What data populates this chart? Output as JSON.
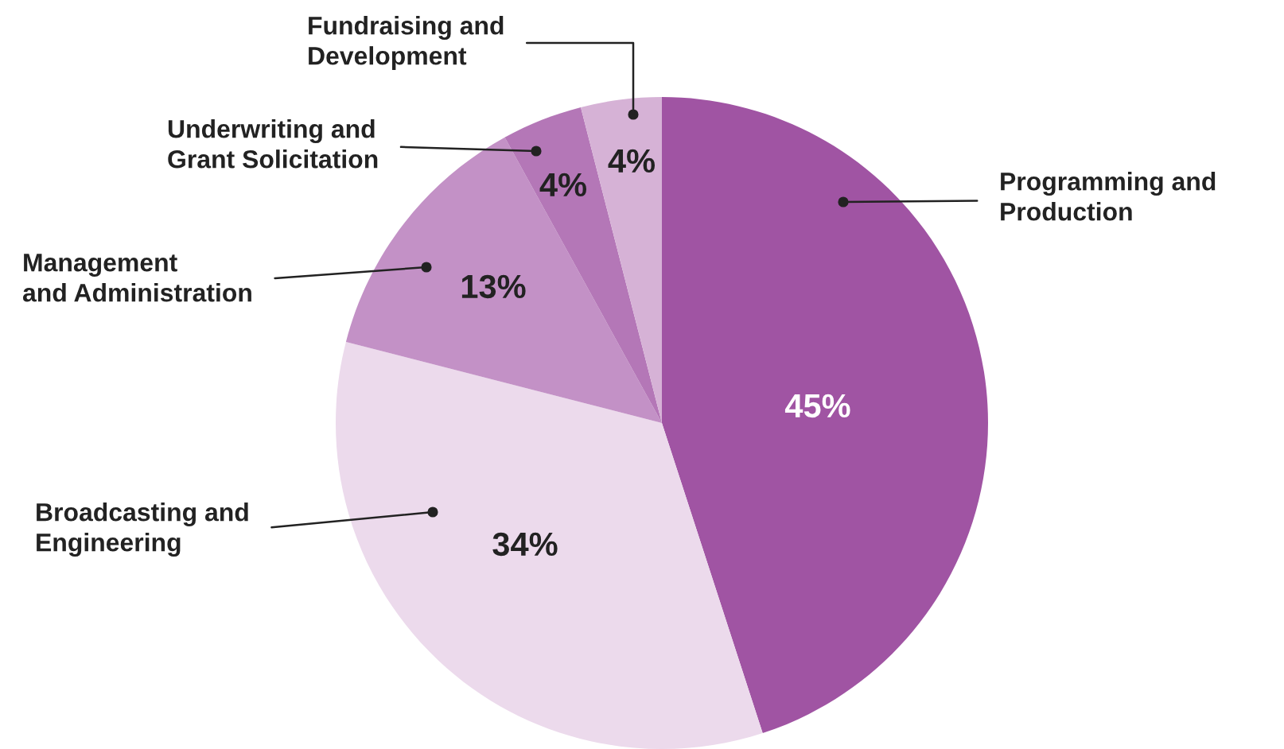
{
  "chart_data": {
    "type": "pie",
    "categories": [
      "Programming and\nProduction",
      "Broadcasting and\nEngineering",
      "Management\nand Administration",
      "Underwriting and\nGrant Solicitation",
      "Fundraising and\nDevelopment"
    ],
    "values": [
      45,
      34,
      13,
      4,
      4
    ],
    "value_labels": [
      "45%",
      "34%",
      "13%",
      "4%",
      "4%"
    ],
    "colors": [
      "#a054a3",
      "#ecdaec",
      "#c391c6",
      "#b477b7",
      "#d6b2d6"
    ]
  }
}
